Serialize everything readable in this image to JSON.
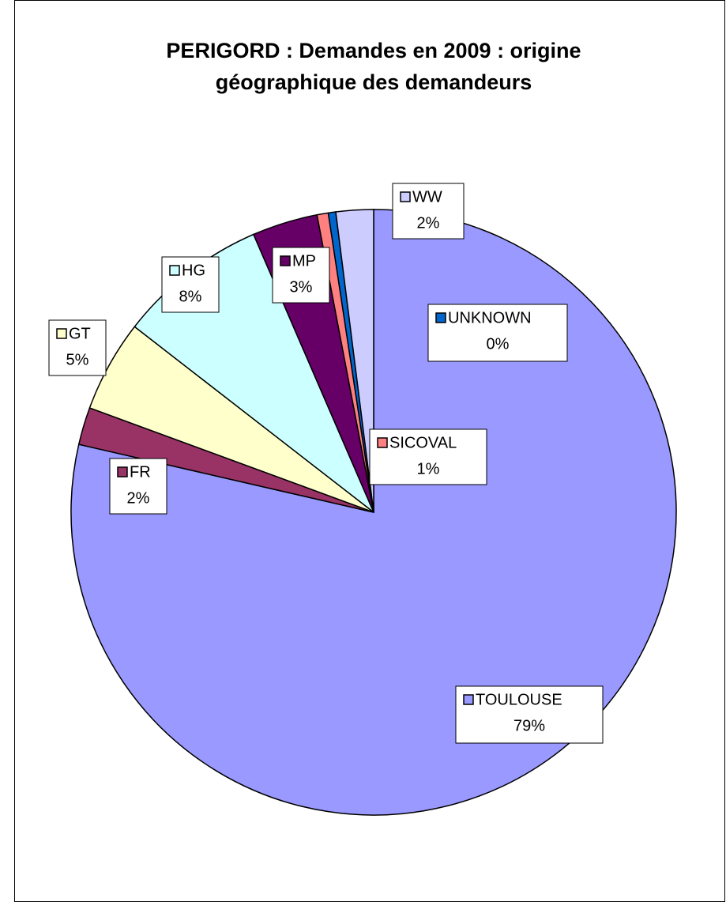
{
  "chart_data": {
    "type": "pie",
    "title": "PERIGORD : Demandes en 2009 : origine géographique des demandeurs",
    "categories": [
      "TOULOUSE",
      "FR",
      "GT",
      "HG",
      "MP",
      "SICOVAL",
      "UNKNOWN",
      "WW"
    ],
    "values": [
      78.6,
      2.0,
      4.9,
      8.0,
      3.5,
      0.6,
      0.4,
      2.0
    ],
    "value_labels": [
      "79%",
      "2%",
      "5%",
      "8%",
      "3%",
      "1%",
      "0%",
      "2%"
    ],
    "colors": [
      "#9999ff",
      "#993366",
      "#ffffcc",
      "#ccffff",
      "#660066",
      "#ff8080",
      "#0066cc",
      "#ccccff"
    ]
  }
}
